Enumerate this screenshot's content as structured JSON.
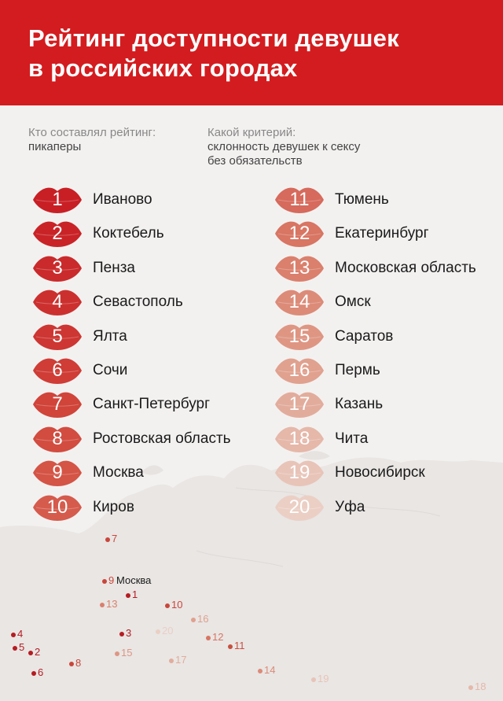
{
  "header": {
    "title_line1": "Рейтинг доступности девушек",
    "title_line2": "в российских городах"
  },
  "meta": {
    "who_label": "Кто составлял рейтинг:",
    "who_value": "пикаперы",
    "criterion_label": "Какой критерий:",
    "criterion_value_line1": "склонность девушек к сексу",
    "criterion_value_line2": "без обязательств"
  },
  "ranking": [
    {
      "rank": "1",
      "city": "Иваново",
      "color": "#c81f25"
    },
    {
      "rank": "2",
      "city": "Коктебель",
      "color": "#c92327"
    },
    {
      "rank": "3",
      "city": "Пенза",
      "color": "#ca2a2b"
    },
    {
      "rank": "4",
      "city": "Севастополь",
      "color": "#cc302e"
    },
    {
      "rank": "5",
      "city": "Ялта",
      "color": "#cd3632"
    },
    {
      "rank": "6",
      "city": "Сочи",
      "color": "#cf3d36"
    },
    {
      "rank": "7",
      "city": "Санкт-Петербург",
      "color": "#d0443a"
    },
    {
      "rank": "8",
      "city": "Ростовская область",
      "color": "#d24c40"
    },
    {
      "rank": "9",
      "city": "Москва",
      "color": "#d45446"
    },
    {
      "rank": "10",
      "city": "Киров",
      "color": "#d55b4c"
    },
    {
      "rank": "11",
      "city": "Тюмень",
      "color": "#d66a5c"
    },
    {
      "rank": "12",
      "city": "Екатеринбург",
      "color": "#d87563"
    },
    {
      "rank": "13",
      "city": "Московская область",
      "color": "#da806d"
    },
    {
      "rank": "14",
      "city": "Омск",
      "color": "#dc8b78"
    },
    {
      "rank": "15",
      "city": "Саратов",
      "color": "#de9683"
    },
    {
      "rank": "16",
      "city": "Пермь",
      "color": "#e0a18f"
    },
    {
      "rank": "17",
      "city": "Казань",
      "color": "#e2ac9c"
    },
    {
      "rank": "18",
      "city": "Чита",
      "color": "#e5b8aa"
    },
    {
      "rank": "19",
      "city": "Новосибирск",
      "color": "#e8c4b8"
    },
    {
      "rank": "20",
      "city": "Уфа",
      "color": "#ebcfc5"
    }
  ],
  "map_pins": [
    {
      "label": "7",
      "color": "#c9463a"
    },
    {
      "label": "9",
      "color": "#c9463a"
    },
    {
      "label": "Москва",
      "color": "#1a1a1a"
    },
    {
      "label": "1",
      "color": "#b51c22"
    },
    {
      "label": "13",
      "color": "#d9806d"
    },
    {
      "label": "10",
      "color": "#c9463a"
    },
    {
      "label": "16",
      "color": "#e0a18f"
    },
    {
      "label": "3",
      "color": "#b51c22"
    },
    {
      "label": "20",
      "color": "#ebcfc5"
    },
    {
      "label": "12",
      "color": "#d87563"
    },
    {
      "label": "11",
      "color": "#c8503f"
    },
    {
      "label": "4",
      "color": "#b51c22"
    },
    {
      "label": "5",
      "color": "#b51c22"
    },
    {
      "label": "2",
      "color": "#b51c22"
    },
    {
      "label": "15",
      "color": "#de9683"
    },
    {
      "label": "17",
      "color": "#e2ac9c"
    },
    {
      "label": "8",
      "color": "#c9463a"
    },
    {
      "label": "6",
      "color": "#b51c22"
    },
    {
      "label": "14",
      "color": "#dc8b78"
    },
    {
      "label": "19",
      "color": "#e8c4b8"
    },
    {
      "label": "18",
      "color": "#e5b8aa"
    }
  ]
}
